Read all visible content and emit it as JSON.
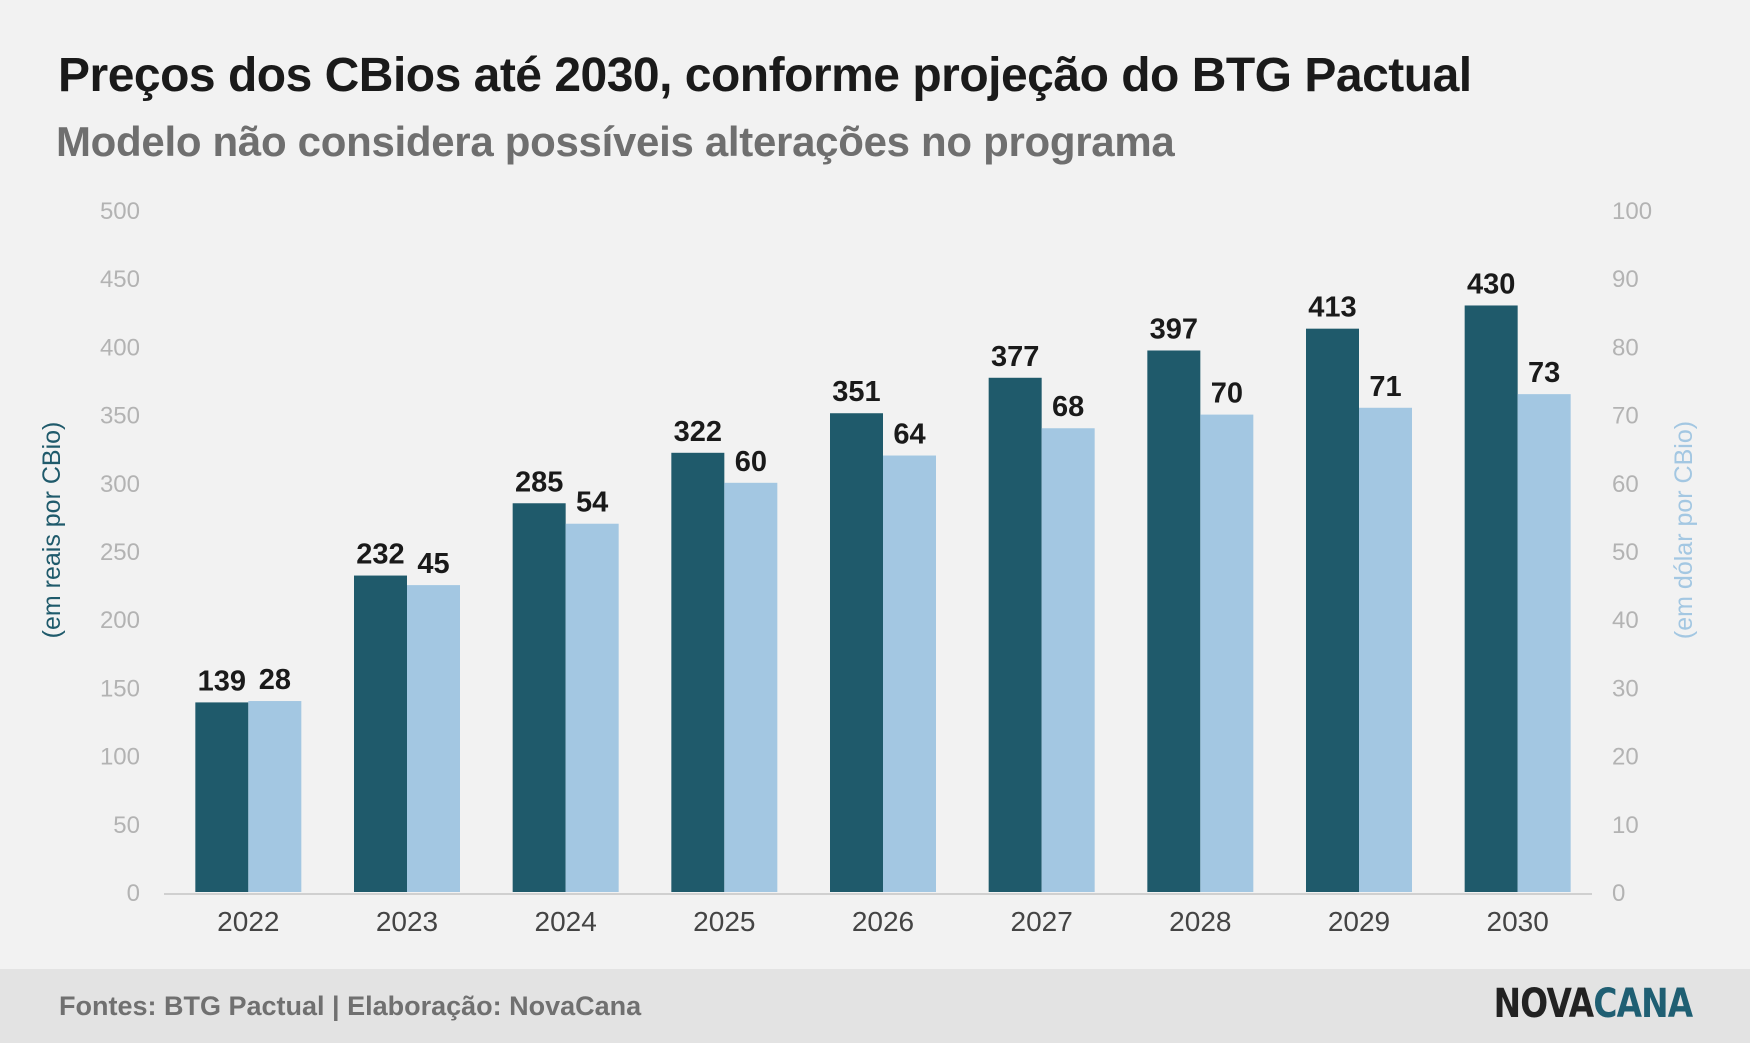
{
  "chart_data": {
    "type": "bar",
    "title": "Preços dos CBios até 2030, conforme projeção do BTG Pactual",
    "subtitle": "Modelo não considera possíveis alterações no programa",
    "categories": [
      "2022",
      "2023",
      "2024",
      "2025",
      "2026",
      "2027",
      "2028",
      "2029",
      "2030"
    ],
    "series": [
      {
        "axis": "left",
        "color": "#1f5a6b",
        "values": [
          139,
          232,
          285,
          322,
          351,
          377,
          397,
          413,
          430
        ]
      },
      {
        "axis": "right",
        "color": "#a3c7e2",
        "values": [
          28,
          45,
          54,
          60,
          64,
          68,
          70,
          71,
          73
        ]
      }
    ],
    "ylabel_left": "(em reais por CBio)",
    "ylabel_right": "(em dólar por CBio)",
    "ylim_left": [
      0,
      500
    ],
    "ylim_right": [
      0,
      100
    ],
    "yticks_left": [
      "0",
      "50",
      "100",
      "150",
      "200",
      "250",
      "300",
      "350",
      "400",
      "450",
      "500"
    ],
    "yticks_right": [
      "0",
      "10",
      "20",
      "30",
      "40",
      "50",
      "60",
      "70",
      "80",
      "90",
      "100"
    ],
    "grid": false,
    "legend": "none"
  },
  "footer": {
    "source": "Fontes: BTG Pactual | Elaboração: NovaCana"
  },
  "brand": {
    "part1": "NOVA",
    "part2": "CANA"
  }
}
